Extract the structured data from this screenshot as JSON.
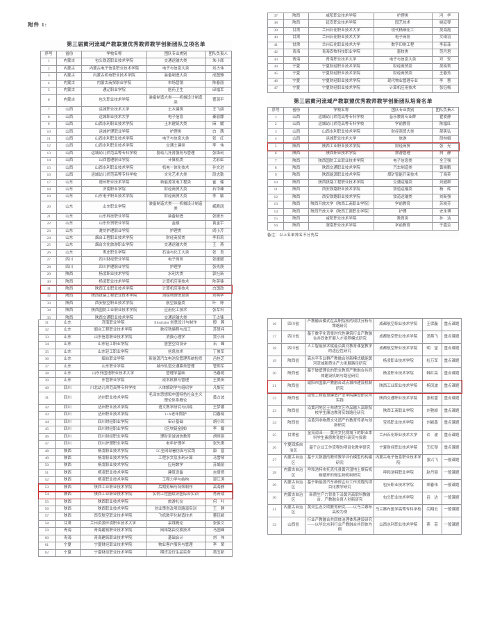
{
  "page": {
    "attachment_label": "附件 1:"
  },
  "tables": {
    "list_a": {
      "title": "第三届黄河流域产教联盟优秀教师教学创新团队立项名单",
      "headers": [
        "序号",
        "省份",
        "学校名称",
        "团队专业类别",
        "团队负责人"
      ],
      "rows": [
        {
          "c": [
            "1",
            "内蒙古",
            "包头铁道职业技术学院",
            "交通运输大类",
            "朱小辉"
          ]
        },
        {
          "c": [
            "2",
            "内蒙古",
            "内蒙古电子信息职业技术学院",
            "电子与信息大类",
            "刘占伟"
          ]
        },
        {
          "c": [
            "3",
            "内蒙古",
            "内蒙古机电职业技术学院",
            "装备制造大类",
            "成图雅"
          ]
        },
        {
          "c": [
            "4",
            "内蒙古",
            "内蒙古商贸职业学院",
            "市场营销",
            "陈春丽"
          ]
        },
        {
          "c": [
            "5",
            "内蒙古",
            "通辽职业学院",
            "医药卫生",
            "邱福军"
          ]
        },
        {
          "c": [
            "6",
            "内蒙古",
            "包头职业技术学院",
            "装备制造大类——机械设计制造类",
            "曹润平"
          ]
        },
        {
          "c": [
            "7",
            "山西",
            "运城职业技术大学",
            "土木建筑",
            "王飞朋"
          ]
        },
        {
          "c": [
            "8",
            "山西",
            "运城职业技术大学",
            "电子信息",
            "秦丽娜"
          ]
        },
        {
          "c": [
            "9",
            "山西",
            "山西水利职业技术学院",
            "土木建筑大类",
            "麻　媛"
          ]
        },
        {
          "c": [
            "10",
            "山西",
            "运城护理职业学院",
            "护理类",
            "白　茜"
          ]
        },
        {
          "c": [
            "11",
            "山西",
            "山西水利职业技术学院",
            "电子与信息大类",
            "张　红"
          ]
        },
        {
          "c": [
            "12",
            "山西",
            "山西水利职业技术学院",
            "交通土建类",
            "李　伟"
          ]
        },
        {
          "c": [
            "13",
            "山西",
            "运城幼儿师范高等专科学校",
            "婴幼儿托育服务与管理",
            "张锋利"
          ]
        },
        {
          "c": [
            "14",
            "山西",
            "山西管理职业学院",
            "计算机类",
            "尤彩虹"
          ]
        },
        {
          "c": [
            "15",
            "山西",
            "山西水利职业技术学院",
            "机电一体化技术",
            "孙文进"
          ]
        },
        {
          "c": [
            "16",
            "山西",
            "运城幼儿师范高等专科学校",
            "文化艺术大类",
            "段志勤"
          ]
        },
        {
          "c": [
            "17",
            "山东",
            "德州职业技术学院",
            "新能源发电工程类",
            "崔　健"
          ]
        },
        {
          "c": [
            "18",
            "山东",
            "济南职业学院",
            "财经商贸大类",
            "石岱峰"
          ]
        },
        {
          "c": [
            "19",
            "山东",
            "山东电子职业技术学院",
            "财经商贸大类",
            "李　敏"
          ]
        },
        {
          "c": [
            "20",
            "山东",
            "山东职业学院",
            "装备制造大类——机械设计制造类",
            "臧殿阔"
          ]
        },
        {
          "c": [
            "21",
            "山东",
            "山东科技职业学院",
            "装备制造",
            "张振东"
          ]
        },
        {
          "c": [
            "22",
            "山东",
            "山东外贸职业学院",
            "金融",
            "袁金宇"
          ]
        },
        {
          "c": [
            "23",
            "山东",
            "潍坊护理职业学院",
            "护理类",
            "阎小芹"
          ]
        },
        {
          "c": [
            "24",
            "山东",
            "烟台工程职业技术学院",
            "财经商贸类",
            "李莉莉"
          ]
        },
        {
          "c": [
            "25",
            "山东",
            "烟台文化旅游职业学院",
            "交通运输大类",
            "王　燕"
          ]
        },
        {
          "c": [
            "26",
            "山东",
            "枣庄职业学院",
            "石油与化工大类",
            "张　良"
          ]
        },
        {
          "c": [
            "27",
            "四川",
            "四川财经职业学院",
            "电子商务",
            "张媛媛"
          ]
        },
        {
          "c": [
            "28",
            "四川",
            "四川护理职业学院",
            "护理学",
            "张先庚"
          ]
        },
        {
          "c": [
            "29",
            "陕西",
            "杨凌职业技术学院",
            "水利大类",
            "郭社新"
          ]
        },
        {
          "c": [
            "30",
            "陕西",
            "杨凌职业技术学院",
            "计算机应用技术",
            "陈英锋"
          ]
        },
        {
          "c": [
            "31",
            "陕西",
            "陕西工业职业技术学院",
            "计算机应用技术",
            "白国政"
          ],
          "h": true
        },
        {
          "c": [
            "32",
            "陕西",
            "陕西铁路工程职业技术学院",
            "测绘地理信息类",
            "刘明学"
          ]
        },
        {
          "c": [
            "33",
            "陕西",
            "西安航空职业技术学院",
            "航空装备类",
            "叶　婷"
          ]
        },
        {
          "c": [
            "34",
            "陕西",
            "陕西国防工业职业技术学院",
            "应用化工技术",
            "张军科"
          ]
        },
        {
          "c": [
            "35",
            "陕西",
            "陕西交通职业技术学院",
            "交通运输大类",
            "王占锋"
          ]
        },
        {
          "c": [
            "36",
            "陕西",
            "陕西能源职业技术学院",
            "康复治疗技术",
            "任春晓"
          ]
        }
      ]
    },
    "list_a_cont": {
      "rows": [
        {
          "c": [
            "37",
            "陕西",
            "咸阳职业技术学院",
            "护理类",
            "冯　华"
          ]
        },
        {
          "c": [
            "38",
            "陕西",
            "延安职业技术学院",
            "园艺技术",
            "姚延琴"
          ]
        },
        {
          "c": [
            "39",
            "甘肃",
            "兰州石化职业技术大学",
            "现代精细化工",
            "吴海霞"
          ]
        },
        {
          "c": [
            "40",
            "甘肃",
            "兰州石化职业技术大学",
            "电子商务",
            "文绮羽"
          ]
        },
        {
          "c": [
            "41",
            "甘肃",
            "兰州石化职业技术大学",
            "数字印刷工程",
            "李菲菲"
          ]
        },
        {
          "c": [
            "42",
            "青海",
            "青海农牧科技职业学院",
            "畜牧类",
            "范月君"
          ]
        },
        {
          "c": [
            "43",
            "青海",
            "青海职业技术大学",
            "电子与信息大类",
            "邓　安"
          ]
        },
        {
          "c": [
            "44",
            "宁夏",
            "宁夏财经职业技术学院",
            "财经商贸类",
            "吴晓莉"
          ]
        },
        {
          "c": [
            "45",
            "宁夏",
            "宁夏财经职业技术学院",
            "财经商贸类",
            "王春芳"
          ]
        },
        {
          "c": [
            "46",
            "宁夏",
            "宁夏财经职业技术学院",
            "现代物业管理专业",
            "李　蓉"
          ]
        },
        {
          "c": [
            "47",
            "宁夏",
            "宁夏财经职业技术学院",
            "计算机应用技术",
            "张钰梅"
          ]
        }
      ]
    },
    "list_b": {
      "title": "第三届黄河流域产教联盟优秀教师教学创新团队培育名单",
      "headers": [
        "序号",
        "省份",
        "学校名称",
        "团队专业类别",
        "团队负责人"
      ],
      "note": "备注：以上名单排名不分先后",
      "rows": [
        {
          "c": [
            "1",
            "山西",
            "运城幼儿师范高等专科学校",
            "音乐教育专业群",
            "翟爱静"
          ]
        },
        {
          "c": [
            "2",
            "山西",
            "运城幼儿师范高等专科学校",
            "学前教育",
            "陈福红"
          ]
        },
        {
          "c": [
            "3",
            "山西",
            "山西水利职业技术学院",
            "财经商贸大类",
            "郝笑弘"
          ]
        },
        {
          "c": [
            "4",
            "山西",
            "运城职业技术大学",
            "旅游",
            "段林娟"
          ]
        },
        {
          "c": [
            "5",
            "陕西",
            "陕西工业职业技术学院",
            "财经商贸",
            "张　光"
          ],
          "h": true
        },
        {
          "c": [
            "6",
            "陕西",
            "陕西职业技术学院",
            "旅游管理",
            "白　静"
          ]
        },
        {
          "c": [
            "7",
            "陕西",
            "陕西国防工业职业技术学院",
            "电子信息类",
            "全卫强"
          ]
        },
        {
          "c": [
            "8",
            "陕西",
            "陕西交通职业技术学院",
            "汽车制造类",
            "黄晓鹏"
          ]
        },
        {
          "c": [
            "9",
            "陕西",
            "陕西能源职业技术学院",
            "煤矿智能开采技术",
            "丁海英"
          ]
        },
        {
          "c": [
            "10",
            "陕西",
            "陕西铁路工程职业技术学院",
            "交通运输类",
            "刘超群"
          ]
        },
        {
          "c": [
            "11",
            "陕西",
            "西安铁路职业技术学院",
            "铁道运输类",
            "杨　辉"
          ]
        },
        {
          "c": [
            "12",
            "陕西",
            "西安铁路职业技术学院",
            "铁道运输类",
            "刘新强"
          ]
        },
        {
          "c": [
            "13",
            "陕西",
            "陕西开放大学（陕西工商职业学院）",
            "学前教育",
            "苏晓芬"
          ]
        },
        {
          "c": [
            "14",
            "陕西",
            "陕西开放大学（陕西工商职业学院）",
            "护理",
            "史永博"
          ]
        },
        {
          "c": [
            "15",
            "陕西",
            "咸阳职业技术学院",
            "教育类",
            "孙　洁"
          ]
        },
        {
          "c": [
            "16",
            "陕西",
            "渭南职业技术学院",
            "学前教育",
            "于嘉汝"
          ]
        }
      ]
    },
    "list_c": {
      "rows": [
        {
          "c": [
            "31",
            "山东",
            "济南职业学院",
            "Illustrator 创意设计与制作",
            "殷　蓉"
          ]
        },
        {
          "c": [
            "32",
            "山东",
            "烟台工程职业技术学院",
            "数控铣编程与加工",
            "苏慧祎"
          ]
        },
        {
          "c": [
            "33",
            "山东",
            "山东信息职业技术学院",
            "消费心理学",
            "贾小伟"
          ]
        },
        {
          "c": [
            "34",
            "山东",
            "山东轻工职业学院",
            "居室空间设计",
            "石　峰"
          ]
        },
        {
          "c": [
            "35",
            "山东",
            "山东轻工职业学院",
            "信息技术",
            "丁俊军"
          ]
        },
        {
          "c": [
            "36",
            "山东",
            "烟台职业学院",
            "新能源汽车电池及管理系统检修",
            "吕桂芝"
          ]
        },
        {
          "c": [
            "37",
            "山东",
            "山东职业学院",
            "城市轨道交通票务管理",
            "管莉军"
          ]
        },
        {
          "c": [
            "38",
            "山东",
            "山东外国语职业技术大学",
            "管理学基础",
            "马春艳"
          ]
        },
        {
          "c": [
            "39",
            "山东",
            "东营职业学院",
            "成本核算与管理",
            "王美田"
          ]
        },
        {
          "c": [
            "40",
            "四川",
            "川北幼儿师范高等专科学校",
            "人体解剖学与组织学",
            "凡梨花"
          ]
        },
        {
          "c": [
            "41",
            "四川",
            "达州职业技术学院",
            "毛泽东思想和中国特色社会主义理论体系概论",
            "黄占波"
          ]
        },
        {
          "c": [
            "42",
            "四川",
            "达州职业技术学院",
            "语文教学研究与训练",
            "王梦娜"
          ]
        },
        {
          "c": [
            "43",
            "四川",
            "达州职业技术学院",
            "1+X老年照护",
            "闫春晓"
          ]
        },
        {
          "c": [
            "44",
            "四川",
            "四川财经职业学院",
            "审计基础",
            "胡小凤"
          ]
        },
        {
          "c": [
            "45",
            "四川",
            "四川财经职业学院",
            "《区块链金融》",
            "李　馨"
          ]
        },
        {
          "c": [
            "46",
            "四川",
            "四川财经职业学院",
            "理财至诚诚信教育",
            "胡恒丽"
          ]
        },
        {
          "c": [
            "47",
            "四川",
            "四川护理职业学院",
            "老年护理学",
            "张先庚"
          ]
        },
        {
          "c": [
            "48",
            "陕西",
            "杨凌职业技术学院",
            "5G全网部署仿真与实践",
            "康　晋"
          ]
        },
        {
          "c": [
            "49",
            "陕西",
            "杨凌职业技术学院",
            "工程水文及水利计算",
            "马雪琴"
          ]
        },
        {
          "c": [
            "50",
            "陕西",
            "杨凌职业技术学院",
            "应用数学",
            "苏娟丽"
          ]
        },
        {
          "c": [
            "51",
            "陕西",
            "杨凌职业技术学院",
            "建筑设备",
            "吉倩倩"
          ]
        },
        {
          "c": [
            "52",
            "陕西",
            "杨凌职业技术学院",
            "工程力学与结构",
            "郭江涛"
          ]
        },
        {
          "c": [
            "53",
            "陕西",
            "陕西工业职业技术学院",
            "后期剪辑与特效制作",
            "高海静"
          ],
          "h": true
        },
        {
          "c": [
            "54",
            "陕西",
            "陕西工业职业技术学院",
            "实例工程图绘识图综合实训",
            "肖青战"
          ],
          "h": true
        },
        {
          "c": [
            "55",
            "陕西",
            "陕西职业技术学院",
            "旅游礼仪",
            "何　叶"
          ]
        },
        {
          "c": [
            "56",
            "陕西",
            "陕西职业技术学院",
            "创业策划及项目路演实训",
            "王　静"
          ]
        },
        {
          "c": [
            "57",
            "陕西",
            "西安航空职业技术学院",
            "飞机数字化制造技术",
            "董钰颖"
          ]
        },
        {
          "c": [
            "58",
            "甘肃",
            "兰州资源环境职业技术大学",
            "采煤概论",
            "张俊文"
          ]
        },
        {
          "c": [
            "59",
            "青海",
            "青海建筑职业技术学院",
            "网络路由交换技术",
            "马国峰"
          ]
        },
        {
          "c": [
            "60",
            "青海",
            "青海建筑职业技术学院",
            "基础会计",
            "刘　伟"
          ]
        },
        {
          "c": [
            "61",
            "宁夏",
            "宁夏财经职业技术学院",
            "物业客户服务与管理",
            "李　荣"
          ]
        },
        {
          "c": [
            "62",
            "宁夏",
            "宁夏财经职业技术学院",
            "期货及衍生品实务",
            "苑玉新"
          ]
        }
      ]
    },
    "list_d": {
      "rows": [
        {
          "c": [
            "16",
            "四川省",
            "产教融合模式在高职院校的现状分析与策略研究",
            "成都航空职业技术学院",
            "王保磊",
            "重点课题"
          ]
        },
        {
          "c": [
            "17",
            "四川省",
            "基于数字化背景时代性建筑行业产教融合共同体开展人才培养模式研究",
            "成都航空职业技术学院",
            "汤燕飞",
            "重点课题"
          ]
        },
        {
          "c": [
            "18",
            "四川省",
            "人工智能技术赋能沿黄河教育课堂教学的适应性研究",
            "成都航空职业技术学院",
            "明　堂",
            "重点课题"
          ]
        },
        {
          "c": [
            "19",
            "陕西省",
            "高水平专业群产教融合创新模式赋能黄河流域新质生产力发展路径研究",
            "杨凌职业技术学院",
            "杜万军",
            "重点课题"
          ]
        },
        {
          "c": [
            "20",
            "陕西省",
            "基于破壁理论的职业教育产教融合共同体建设机制与路径研究",
            "杨凌职业技术学院",
            "韩红亮",
            "重点课题"
          ]
        },
        {
          "c": [
            "21",
            "陕西省",
            "咸阳市国家产教融合试点城市建设机制研究",
            "陕西工业职业技术学院",
            "杨凤波",
            "重点课题"
          ],
          "h": true
        },
        {
          "c": [
            "22",
            "陕西省",
            "道修工程智慧建造产业学院建设研究与实践",
            "陕西交通职业技术学院",
            "张松雷",
            "重点课题"
          ]
        },
        {
          "c": [
            "23",
            "陕西省",
            "沿黄河地区土布绣文艺作品融入高职院校学生廉洁教育实践路径研究",
            "陕西工商职业学院",
            "刘艳颖",
            "重点课题"
          ]
        },
        {
          "c": [
            "24",
            "陕西省",
            "沿黄河非物质文化遗产的教育传承与创新研究",
            "宝鸡职业技术学院",
            "刘颖鑫",
            "重点课题"
          ]
        },
        {
          "c": [
            "25",
            "甘肃省",
            "金流润泽——黄河文化视域下的职业本科学生素质教育提升研究与探索",
            "兰州石化职业技术大学",
            "许　波",
            "重点课题"
          ]
        },
        {
          "c": [
            "26",
            "宁夏回族自治区",
            "基于企业工作流程的项目化教学研究",
            "宁夏财经职业技术学院",
            "王红琴",
            "重点课题"
          ]
        },
        {
          "c": [
            "27",
            "内蒙古自治区",
            "基于大数据的教师教学评价模型的构建研究",
            "内蒙古电子信息职业技术学院",
            "张兴飞",
            "一般课题"
          ]
        },
        {
          "c": [
            "28",
            "内蒙古自治区",
            "呼和浩特市托克托县黄河湿地土壤有机碳循环的微生物机制研究",
            "呼和浩特职业学院",
            "赵丹丽",
            "一般课题"
          ]
        },
        {
          "c": [
            "29",
            "内蒙古自治区",
            "基于新能源汽车维修企业工作流程的项目化教学研究",
            "包头职业技术学院",
            "郑春伟",
            "一般课题"
          ]
        },
        {
          "c": [
            "30",
            "内蒙古自治区",
            "新质生产力背景下沿黄河高职科教融合、产教融合育人创新研究",
            "包头职业技术学院",
            "吕　达",
            "一般课题"
          ]
        },
        {
          "c": [
            "31",
            "内蒙古自治区",
            "黄河生态文明教育研究——以乌兰察布高校为例",
            "乌兰察布医学高等专科学校",
            "闫翔云",
            "一般课题"
          ]
        },
        {
          "c": [
            "32",
            "山西省",
            "行业产教融合共同体治理体系建设研究——以华北水利行业产教融合共同体为例",
            "山西水利职业技术学院",
            "燕　芸",
            "一般课题"
          ]
        }
      ]
    }
  }
}
